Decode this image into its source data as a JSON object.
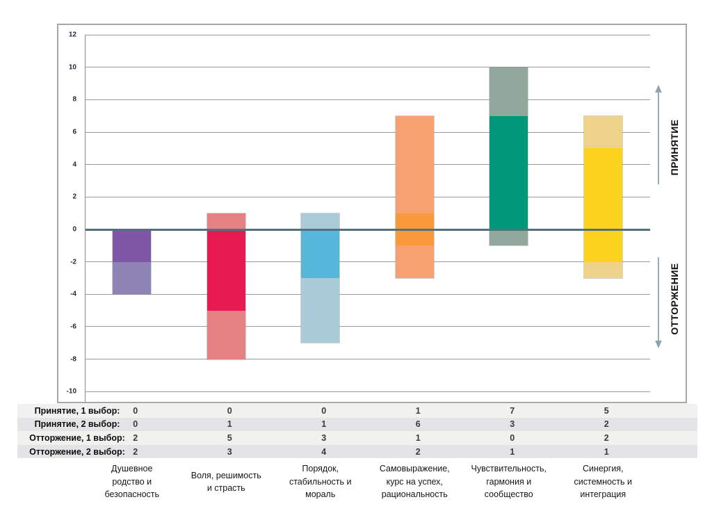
{
  "colors": {
    "grid": "#9B9B9B",
    "zero_line": "#54707F",
    "frame": "#A6A6AB",
    "arrow": "#8EA3B1",
    "row_stripe_light": "#F1F1F0",
    "row_stripe_dark": "#E4E4E7"
  },
  "chart_data": {
    "type": "bar",
    "stacked": true,
    "title": "",
    "ylim": [
      -10,
      12
    ],
    "ytick_step": 2,
    "yticks": [
      12,
      10,
      8,
      6,
      4,
      2,
      0,
      -2,
      -4,
      -6,
      -8,
      -10
    ],
    "grid": true,
    "legend_position": "none",
    "categories": [
      "Душевное родство и безопасность",
      "Воля, решимость и страсть",
      "Порядок, стабильность и мораль",
      "Самовыражение, курс на успех, рациональность",
      "Чувствительность, гармония и сообщество",
      "Синергия, системность и интеграция"
    ],
    "category_label_lines": [
      [
        "Душевное",
        "родство и",
        "безопасность"
      ],
      [
        "Воля, решимость",
        "и страсть"
      ],
      [
        "Порядок,",
        "стабильность и",
        "мораль"
      ],
      [
        "Самовыражение,",
        "курс на успех,",
        "рациональность"
      ],
      [
        "Чувствительность,",
        "гармония и",
        "сообщество"
      ],
      [
        "Синергия,",
        "системность и",
        "интеграция"
      ]
    ],
    "series": [
      {
        "name": "Принятие, 1 выбор:",
        "direction": "up",
        "shade": "primary",
        "values": [
          0,
          0,
          0,
          1,
          7,
          5
        ]
      },
      {
        "name": "Принятие, 2 выбор:",
        "direction": "up",
        "shade": "secondary",
        "values": [
          0,
          1,
          1,
          6,
          3,
          2
        ]
      },
      {
        "name": "Отторжение, 1 выбор:",
        "direction": "down",
        "shade": "primary",
        "values": [
          2,
          5,
          3,
          1,
          0,
          2
        ]
      },
      {
        "name": "Отторжение, 2 выбор:",
        "direction": "down",
        "shade": "secondary",
        "values": [
          2,
          3,
          4,
          2,
          1,
          1
        ]
      }
    ],
    "category_colors": [
      {
        "primary": "#7E58A6",
        "secondary": "#8D84B5"
      },
      {
        "primary": "#E61950",
        "secondary": "#E58083"
      },
      {
        "primary": "#56B7DB",
        "secondary": "#A9CBD8"
      },
      {
        "primary": "#F8993B",
        "secondary": "#F7A171"
      },
      {
        "primary": "#009879",
        "secondary": "#90A99C"
      },
      {
        "primary": "#FCD21C",
        "secondary": "#EED28A"
      }
    ],
    "axis_annotations": {
      "positive": "ПРИНЯТИЕ",
      "negative": "ОТТОРЖЕНИЕ"
    }
  }
}
